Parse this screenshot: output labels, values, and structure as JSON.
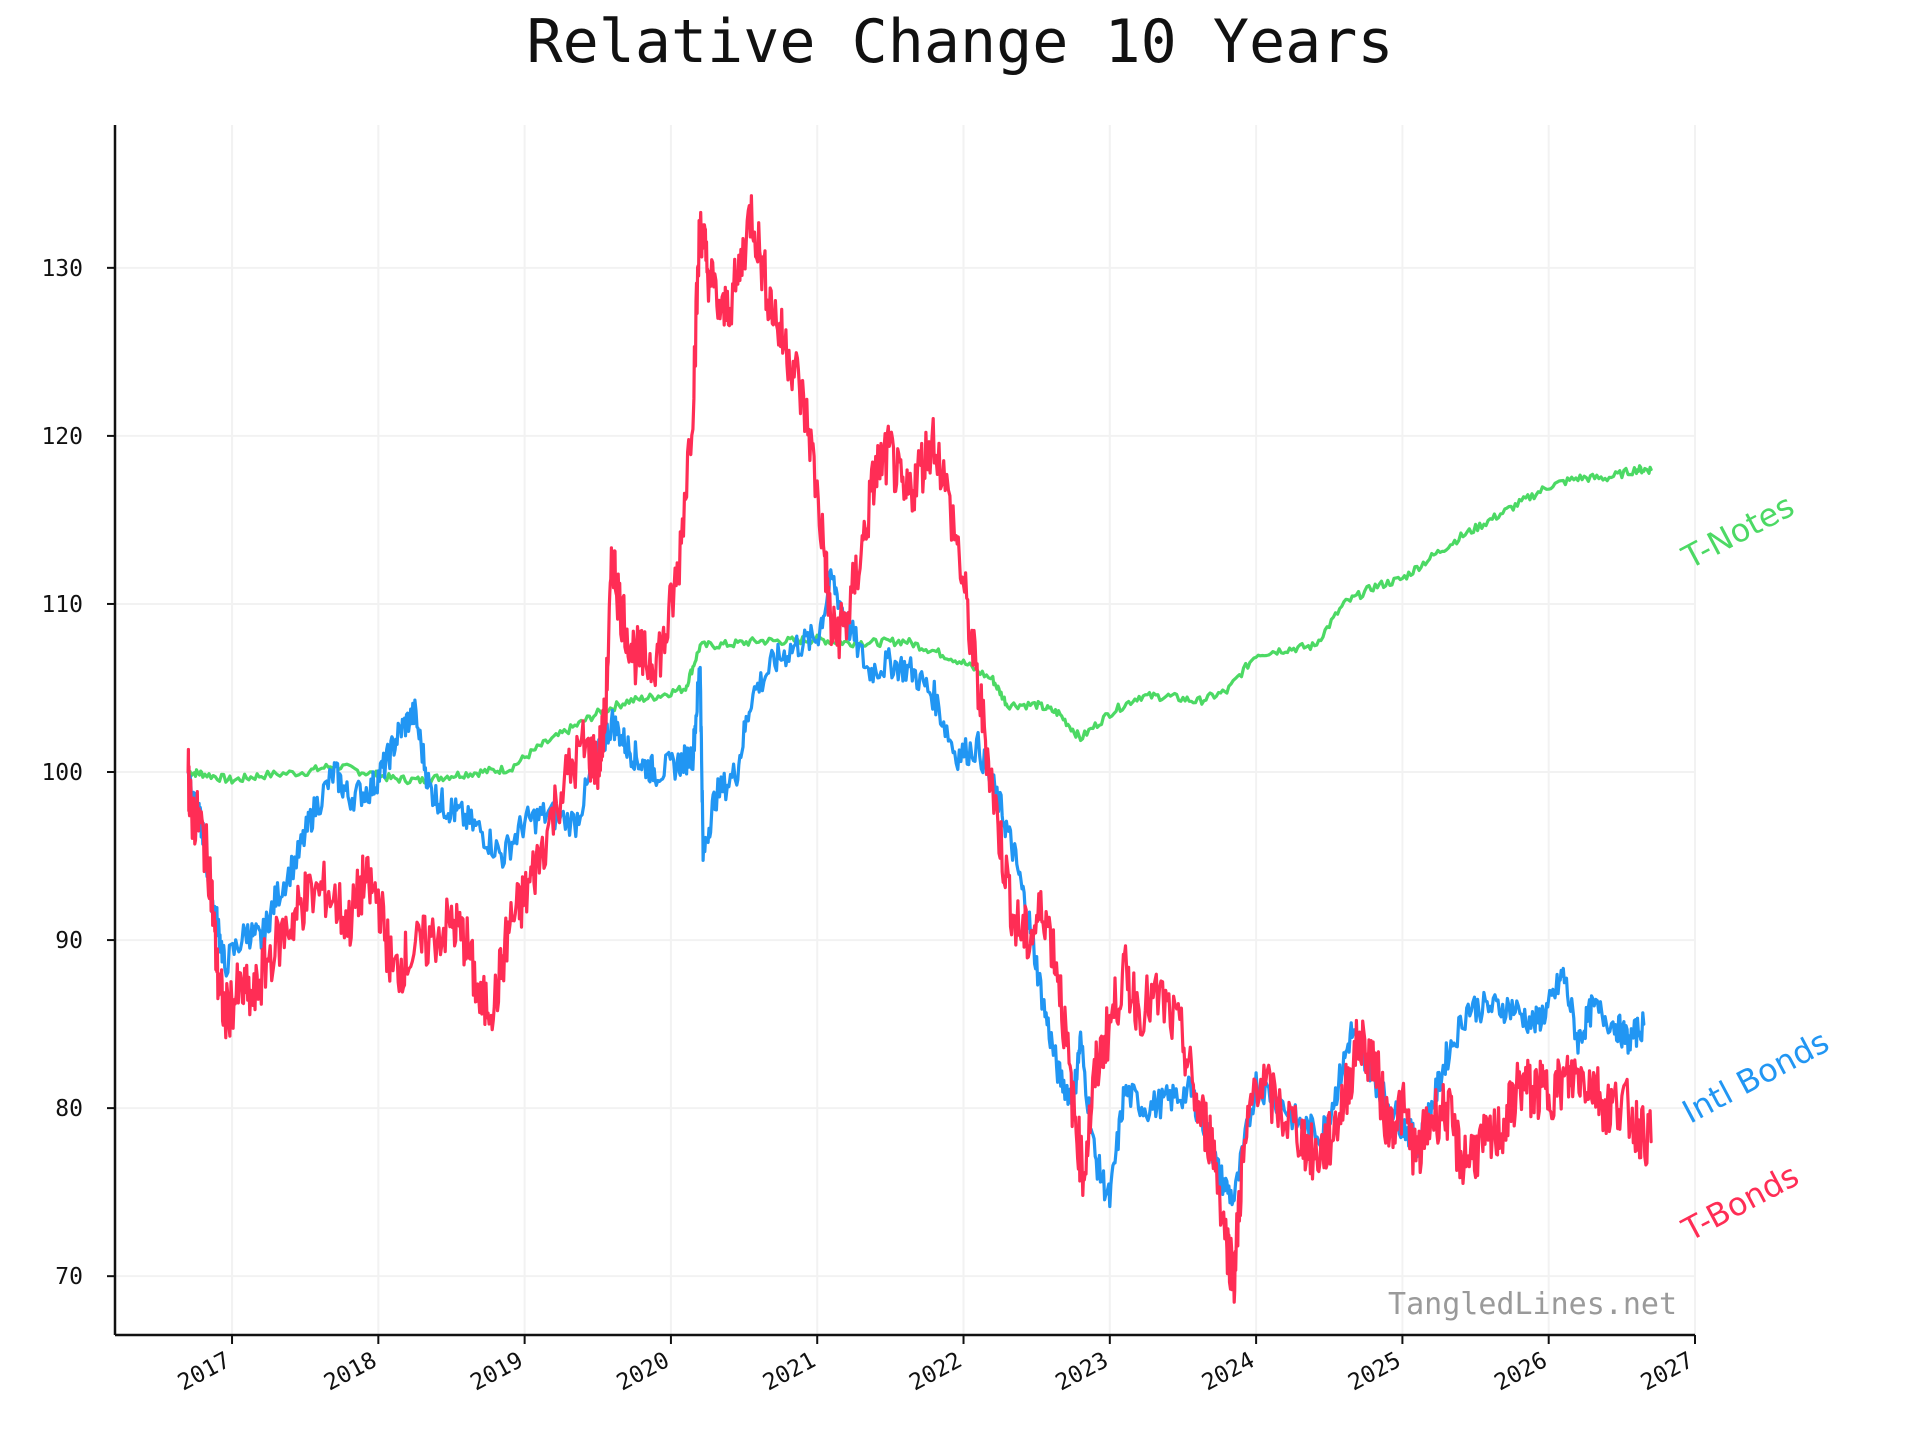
{
  "chart_data": {
    "type": "line",
    "title": "Relative Change 10 Years",
    "xlabel": "",
    "ylabel": "",
    "xlim": [
      2016.2,
      2027.0
    ],
    "ylim": [
      66.5,
      138.5
    ],
    "x_ticks": [
      "2017",
      "2018",
      "2019",
      "2020",
      "2021",
      "2022",
      "2023",
      "2024",
      "2025",
      "2026",
      "2027"
    ],
    "y_ticks": [
      "70",
      "80",
      "90",
      "100",
      "110",
      "120",
      "130"
    ],
    "grid": true,
    "legend": "labels at right end of each line",
    "watermark": "TangledLines.net",
    "series": [
      {
        "name": "T-Notes",
        "color": "#4cd964",
        "x": [
          2016.7,
          2016.8,
          2017.0,
          2017.2,
          2017.5,
          2017.7,
          2017.9,
          2018.1,
          2018.3,
          2018.5,
          2018.7,
          2018.9,
          2019.1,
          2019.3,
          2019.5,
          2019.7,
          2019.9,
          2020.1,
          2020.2,
          2020.4,
          2020.6,
          2020.8,
          2021.0,
          2021.2,
          2021.4,
          2021.6,
          2021.8,
          2022.0,
          2022.2,
          2022.3,
          2022.5,
          2022.65,
          2022.8,
          2023.0,
          2023.2,
          2023.4,
          2023.6,
          2023.8,
          2024.0,
          2024.2,
          2024.4,
          2024.6,
          2024.8,
          2025.0,
          2025.2,
          2025.4,
          2025.6,
          2025.8,
          2026.0,
          2026.2,
          2026.4,
          2026.6,
          2026.7
        ],
        "values": [
          100.0,
          99.9,
          99.5,
          99.8,
          100.0,
          100.4,
          100.0,
          99.6,
          99.5,
          99.8,
          100.0,
          100.2,
          101.5,
          102.5,
          103.5,
          104.2,
          104.5,
          105.0,
          107.5,
          107.6,
          107.8,
          107.8,
          107.9,
          107.7,
          107.7,
          107.8,
          107.2,
          106.5,
          105.5,
          104.0,
          104.0,
          103.5,
          102.0,
          103.5,
          104.5,
          104.5,
          104.2,
          104.8,
          107.0,
          107.3,
          107.5,
          110.0,
          111.0,
          111.5,
          112.8,
          114.0,
          115.0,
          116.0,
          117.0,
          117.5,
          117.5,
          118.0,
          118.0
        ]
      },
      {
        "name": "Intl Bonds",
        "color": "#2196f3",
        "x": [
          2016.7,
          2016.75,
          2016.8,
          2016.85,
          2016.9,
          2016.95,
          2017.1,
          2017.2,
          2017.3,
          2017.45,
          2017.55,
          2017.7,
          2017.8,
          2017.95,
          2018.05,
          2018.15,
          2018.25,
          2018.35,
          2018.45,
          2018.55,
          2018.7,
          2018.85,
          2019.0,
          2019.15,
          2019.35,
          2019.5,
          2019.6,
          2019.7,
          2019.8,
          2019.9,
          2020.05,
          2020.15,
          2020.2,
          2020.22,
          2020.3,
          2020.45,
          2020.55,
          2020.7,
          2020.85,
          2021.0,
          2021.1,
          2021.2,
          2021.35,
          2021.5,
          2021.65,
          2021.8,
          2021.95,
          2022.1,
          2022.25,
          2022.35,
          2022.45,
          2022.55,
          2022.65,
          2022.75,
          2022.8,
          2022.9,
          2023.0,
          2023.1,
          2023.25,
          2023.4,
          2023.55,
          2023.65,
          2023.75,
          2023.85,
          2024.0,
          2024.15,
          2024.3,
          2024.45,
          2024.55,
          2024.65,
          2024.75,
          2024.85,
          2025.0,
          2025.1,
          2025.2,
          2025.3,
          2025.45,
          2025.6,
          2025.75,
          2025.9,
          2026.0,
          2026.1,
          2026.2,
          2026.3,
          2026.45,
          2026.55,
          2026.65
        ],
        "values": [
          100.0,
          98.0,
          96.5,
          93.0,
          91.0,
          88.5,
          90.5,
          90.0,
          92.5,
          95.0,
          97.5,
          100.0,
          98.5,
          99.0,
          100.5,
          102.5,
          103.5,
          99.0,
          98.0,
          97.5,
          96.5,
          95.0,
          97.0,
          97.5,
          97.0,
          101.0,
          103.0,
          101.5,
          100.5,
          100.0,
          100.5,
          101.0,
          106.5,
          95.0,
          98.5,
          100.0,
          104.5,
          106.5,
          107.5,
          108.0,
          111.5,
          109.0,
          106.0,
          106.5,
          106.0,
          104.5,
          101.0,
          101.5,
          98.0,
          95.0,
          91.0,
          86.0,
          82.0,
          80.5,
          84.0,
          77.0,
          74.5,
          81.0,
          80.0,
          80.5,
          81.0,
          79.0,
          76.0,
          74.5,
          81.5,
          80.5,
          79.0,
          78.5,
          81.0,
          84.5,
          83.0,
          81.0,
          79.0,
          78.0,
          80.0,
          83.0,
          86.0,
          86.0,
          86.0,
          85.0,
          86.0,
          88.0,
          84.0,
          86.0,
          85.0,
          84.0,
          85.0
        ]
      },
      {
        "name": "T-Bonds",
        "color": "#ff2d55",
        "x": [
          2016.7,
          2016.72,
          2016.78,
          2016.85,
          2016.9,
          2016.95,
          2017.05,
          2017.15,
          2017.25,
          2017.4,
          2017.5,
          2017.65,
          2017.8,
          2017.9,
          2018.0,
          2018.1,
          2018.2,
          2018.35,
          2018.5,
          2018.6,
          2018.7,
          2018.8,
          2018.9,
          2019.0,
          2019.1,
          2019.25,
          2019.4,
          2019.5,
          2019.55,
          2019.6,
          2019.65,
          2019.75,
          2019.85,
          2019.95,
          2020.05,
          2020.15,
          2020.2,
          2020.25,
          2020.35,
          2020.45,
          2020.55,
          2020.65,
          2020.75,
          2020.85,
          2020.95,
          2021.05,
          2021.1,
          2021.2,
          2021.3,
          2021.4,
          2021.5,
          2021.6,
          2021.7,
          2021.8,
          2021.95,
          2022.05,
          2022.15,
          2022.25,
          2022.35,
          2022.45,
          2022.55,
          2022.65,
          2022.75,
          2022.82,
          2022.9,
          2023.0,
          2023.1,
          2023.2,
          2023.35,
          2023.5,
          2023.6,
          2023.7,
          2023.8,
          2023.85,
          2023.9,
          2024.0,
          2024.15,
          2024.3,
          2024.4,
          2024.5,
          2024.6,
          2024.7,
          2024.8,
          2024.9,
          2025.0,
          2025.1,
          2025.2,
          2025.3,
          2025.4,
          2025.5,
          2025.6,
          2025.7,
          2025.8,
          2025.9,
          2026.0,
          2026.1,
          2026.2,
          2026.3,
          2026.4,
          2026.5,
          2026.6,
          2026.7
        ],
        "values": [
          100.0,
          97.5,
          97.0,
          94.0,
          88.0,
          85.5,
          87.0,
          86.5,
          89.0,
          91.0,
          92.5,
          93.0,
          91.0,
          93.5,
          92.5,
          88.0,
          89.0,
          90.0,
          91.0,
          90.0,
          86.0,
          86.5,
          91.0,
          92.5,
          95.0,
          99.0,
          101.5,
          100.5,
          103.0,
          113.0,
          110.0,
          107.0,
          106.5,
          107.5,
          112.0,
          122.0,
          133.0,
          130.0,
          127.0,
          129.0,
          133.5,
          129.0,
          126.0,
          124.0,
          120.0,
          113.0,
          108.0,
          109.0,
          113.0,
          118.0,
          119.0,
          116.0,
          118.0,
          120.0,
          114.0,
          108.0,
          102.0,
          96.0,
          91.0,
          90.0,
          92.0,
          88.0,
          80.0,
          76.0,
          82.0,
          85.0,
          88.0,
          86.0,
          86.5,
          84.0,
          80.0,
          78.0,
          72.0,
          70.0,
          76.0,
          82.0,
          80.0,
          78.5,
          77.0,
          78.0,
          80.5,
          84.0,
          83.0,
          79.0,
          80.0,
          77.0,
          79.5,
          80.0,
          77.0,
          77.5,
          78.0,
          79.0,
          81.5,
          81.0,
          81.0,
          81.5,
          82.0,
          81.5,
          80.0,
          80.5,
          79.0,
          78.0
        ]
      }
    ]
  }
}
